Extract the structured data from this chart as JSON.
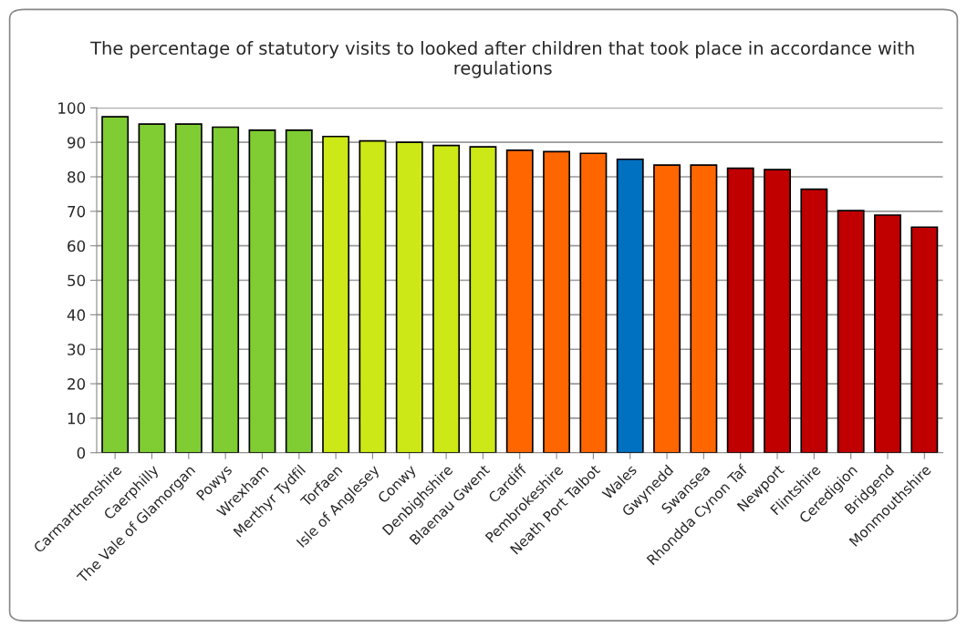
{
  "chart_data": {
    "type": "bar",
    "title": "The percentage of statutory visits to looked after children that took place in accordance with regulations",
    "categories": [
      "Carmarthenshire",
      "Caerphilly",
      "The Vale of Glamorgan",
      "Powys",
      "Wrexham",
      "Merthyr Tydfil",
      "Torfaen",
      "Isle of Anglesey",
      "Conwy",
      "Denbighshire",
      "Blaenau Gwent",
      "Cardiff",
      "Pembrokeshire",
      "Neath Port Talbot",
      "Wales",
      "Gwynedd",
      "Swansea",
      "Rhondda Cynon Taf",
      "Newport",
      "Flintshire",
      "Ceredigion",
      "Bridgend",
      "Monmouthshire"
    ],
    "values": [
      97.4,
      95.3,
      95.3,
      94.4,
      93.5,
      93.5,
      91.7,
      90.4,
      90.0,
      89.1,
      88.7,
      87.7,
      87.3,
      86.8,
      85.1,
      83.4,
      83.4,
      82.5,
      82.1,
      76.4,
      70.2,
      68.9,
      65.4
    ],
    "colors": [
      "#7fcc33",
      "#7fcc33",
      "#7fcc33",
      "#7fcc33",
      "#7fcc33",
      "#7fcc33",
      "#cce816",
      "#cce816",
      "#cce816",
      "#cce816",
      "#cce816",
      "#ff6600",
      "#ff6600",
      "#ff6600",
      "#0070c0",
      "#ff6600",
      "#ff6600",
      "#c00000",
      "#c00000",
      "#c00000",
      "#c00000",
      "#c00000",
      "#c00000"
    ],
    "ylim": [
      0,
      100
    ],
    "yticks": [
      0,
      10,
      20,
      30,
      40,
      50,
      60,
      70,
      80,
      90,
      100
    ],
    "grid": "y"
  }
}
